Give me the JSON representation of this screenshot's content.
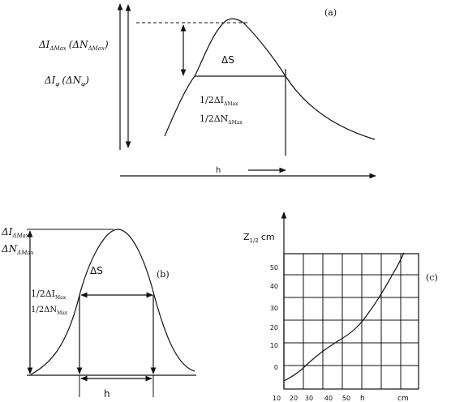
{
  "panel_a": {
    "tag": "(a)",
    "ylabel1": "ΔI_ΔMax (ΔN_ΔMax)",
    "ylabel1_parts": {
      "main": "ΔI",
      "sub": "ΔMax",
      "paren_main": "(ΔN",
      "paren_sub": "ΔMax",
      "close": ")"
    },
    "ylabel2_parts": {
      "main": "ΔI",
      "sub": "φ",
      "paren_main": "(ΔN",
      "paren_sub": "φ",
      "close": ")"
    },
    "area": "ΔS",
    "half_i": {
      "main": "1/2ΔI",
      "sub": "ΔMax"
    },
    "half_n": {
      "main": "1/2ΔN",
      "sub": "ΔMax"
    },
    "xlabel": "h"
  },
  "panel_b": {
    "tag": "(b)",
    "ylabel_i": {
      "main": "ΔI",
      "sub": "ΔMax"
    },
    "ylabel_n": {
      "main": "ΔN",
      "sub": "ΔMax"
    },
    "area": "ΔS",
    "half_i": {
      "main": "1/2ΔI",
      "sub": "Max"
    },
    "half_n": {
      "main": "1/2ΔN",
      "sub": "Max"
    },
    "xlabel": "h"
  },
  "panel_c": {
    "tag": "(c)",
    "ylabel": {
      "main": "Z",
      "sub": "1/2",
      "unit": "cm"
    },
    "y_ticks": [
      "0",
      "10",
      "20",
      "30",
      "40",
      "50"
    ],
    "x_ticks": [
      "10",
      "20",
      "30",
      "40",
      "50"
    ],
    "xlabel": "h",
    "xunit": "cm"
  }
}
